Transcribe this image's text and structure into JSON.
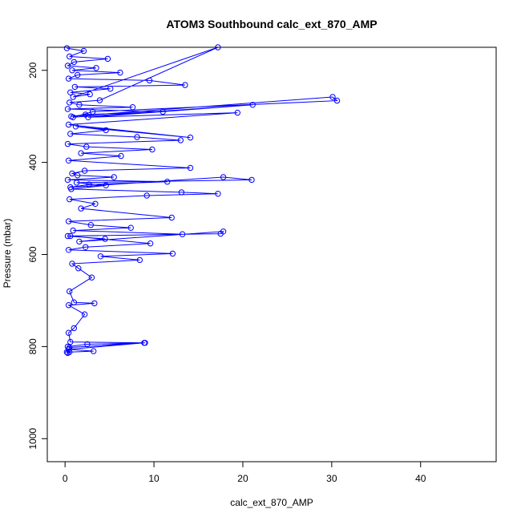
{
  "chart_data": {
    "type": "scatter",
    "title": "ATOM3 Southbound calc_ext_870_AMP",
    "xlabel": "calc_ext_870_AMP",
    "ylabel": "Pressure (mbar)",
    "xlim": [
      -2,
      48.5
    ],
    "ylim": [
      1050,
      150
    ],
    "y_reversed": true,
    "x_ticks": [
      0,
      10,
      20,
      30,
      40
    ],
    "y_ticks": [
      200,
      400,
      600,
      800,
      1000
    ],
    "grid": false,
    "series_color": "#0000ff",
    "marker": "open-circle",
    "connect_points": true,
    "x": [
      0.2,
      2.1,
      0.5,
      4.8,
      1.0,
      0.3,
      3.5,
      0.8,
      6.2,
      1.4,
      0.4,
      9.5,
      13.5,
      1.1,
      5.1,
      0.6,
      2.8,
      0.9,
      17.2,
      3.9,
      0.5,
      1.6,
      7.6,
      0.3,
      11.0,
      2.3,
      0.7,
      30.1,
      30.6,
      3.1,
      0.9,
      21.1,
      2.6,
      19.4,
      0.4,
      14.1,
      1.2,
      4.6,
      0.6,
      8.1,
      13.0,
      0.3,
      2.4,
      9.8,
      1.8,
      6.3,
      0.4,
      14.1,
      2.2,
      0.8,
      1.4,
      5.5,
      0.3,
      11.5,
      2.7,
      0.6,
      17.8,
      21.0,
      1.3,
      4.6,
      0.7,
      13.1,
      17.2,
      9.2,
      0.5,
      3.4,
      1.8,
      12.0,
      0.4,
      2.9,
      7.4,
      0.9,
      13.2,
      0.3,
      4.5,
      1.6,
      17.8,
      17.5,
      0.6,
      9.6,
      2.3,
      0.4,
      12.1,
      4.0,
      8.4,
      0.8,
      1.5,
      3.0,
      0.5,
      1.0,
      3.3,
      0.4,
      2.2,
      1.0,
      0.4,
      0.6,
      9.0,
      2.5,
      0.3,
      0.5,
      8.9,
      0.4,
      3.2,
      0.5,
      0.3,
      0.4,
      0.2
    ],
    "y": [
      152,
      158,
      170,
      175,
      182,
      190,
      195,
      200,
      205,
      210,
      218,
      222,
      232,
      236,
      240,
      248,
      252,
      258,
      150,
      265,
      270,
      275,
      280,
      284,
      290,
      296,
      300,
      258,
      266,
      290,
      302,
      275,
      302,
      292,
      318,
      346,
      322,
      330,
      338,
      345,
      352,
      360,
      366,
      372,
      380,
      386,
      396,
      412,
      418,
      424,
      428,
      432,
      438,
      442,
      448,
      454,
      432,
      438,
      444,
      450,
      458,
      465,
      468,
      472,
      480,
      490,
      500,
      520,
      528,
      536,
      542,
      548,
      556,
      560,
      566,
      572,
      550,
      555,
      560,
      576,
      584,
      590,
      598,
      604,
      612,
      620,
      630,
      650,
      680,
      704,
      706,
      710,
      730,
      760,
      770,
      790,
      792,
      795,
      800,
      802,
      792,
      806,
      810,
      812,
      814,
      806,
      812
    ]
  }
}
